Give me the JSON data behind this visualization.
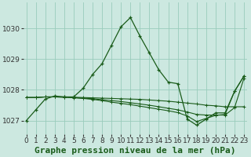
{
  "title": "Graphe pression niveau de la mer (hPa)",
  "bg_color": "#cce8e0",
  "grid_color": "#99ccbb",
  "line_color": "#1a5c1a",
  "x_ticks": [
    0,
    1,
    2,
    3,
    4,
    5,
    6,
    7,
    8,
    9,
    10,
    11,
    12,
    13,
    14,
    15,
    16,
    17,
    18,
    19,
    20,
    21,
    22,
    23
  ],
  "y_ticks": [
    1027,
    1028,
    1029,
    1030
  ],
  "ylim": [
    1026.55,
    1030.85
  ],
  "xlim": [
    -0.3,
    23.3
  ],
  "series": [
    [
      1027.0,
      1027.35,
      1027.7,
      1027.8,
      1027.77,
      1027.77,
      1028.05,
      1028.5,
      1028.85,
      1029.45,
      1030.05,
      1030.35,
      1029.75,
      1029.2,
      1028.65,
      1028.25,
      1028.2,
      1027.05,
      1026.85,
      1027.05,
      1027.25,
      1027.25,
      1027.95,
      1028.45
    ],
    [
      1027.75,
      1027.75,
      1027.77,
      1027.77,
      1027.77,
      1027.76,
      1027.75,
      1027.74,
      1027.73,
      1027.72,
      1027.71,
      1027.7,
      1027.69,
      1027.67,
      1027.65,
      1027.63,
      1027.6,
      1027.57,
      1027.54,
      1027.5,
      1027.48,
      1027.45,
      1027.45,
      1027.45
    ],
    [
      1027.75,
      1027.75,
      1027.77,
      1027.77,
      1027.76,
      1027.74,
      1027.72,
      1027.69,
      1027.65,
      1027.6,
      1027.56,
      1027.52,
      1027.47,
      1027.42,
      1027.37,
      1027.32,
      1027.26,
      1027.15,
      1026.97,
      1027.07,
      1027.17,
      1027.2,
      1027.95,
      1028.45
    ],
    [
      1027.75,
      1027.75,
      1027.77,
      1027.77,
      1027.76,
      1027.75,
      1027.73,
      1027.71,
      1027.68,
      1027.65,
      1027.62,
      1027.58,
      1027.54,
      1027.5,
      1027.45,
      1027.4,
      1027.35,
      1027.28,
      1027.2,
      1027.18,
      1027.18,
      1027.18,
      1027.42,
      1028.38
    ]
  ],
  "title_fontsize": 8,
  "tick_fontsize": 6.5
}
